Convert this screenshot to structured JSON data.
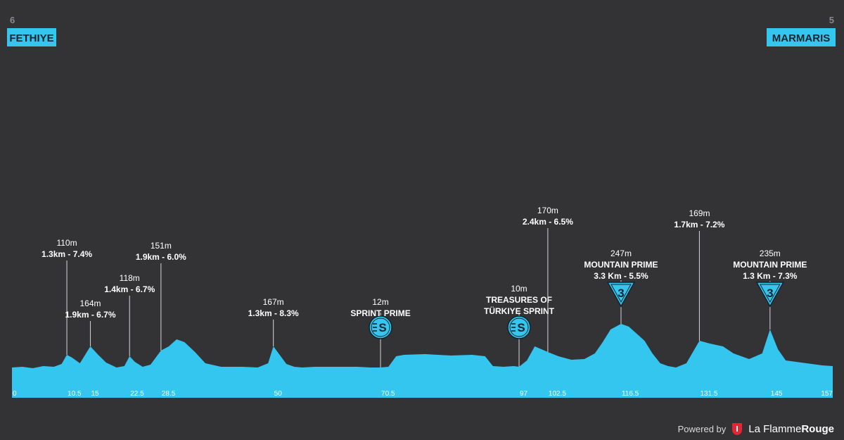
{
  "start": {
    "number": "6",
    "name": "FETHIYE"
  },
  "finish": {
    "number": "5",
    "name": "MARMARIS"
  },
  "colors": {
    "background": "#333336",
    "profile": "#35c6f0",
    "badge": "#35c6f0"
  },
  "footer": {
    "powered_by": "Powered by",
    "brand_part1": "La Flamme",
    "brand_part2": "Rouge",
    "logo_icon": "flame-logo-icon"
  },
  "chart_data": {
    "type": "area",
    "title": "",
    "xlabel": "",
    "ylabel": "",
    "xlim": [
      0,
      157
    ],
    "x_ticks": [
      {
        "x": 0,
        "label": "0"
      },
      {
        "x": 10.5,
        "label": "10.5"
      },
      {
        "x": 15,
        "label": "15"
      },
      {
        "x": 22.5,
        "label": "22.5"
      },
      {
        "x": 28.5,
        "label": "28.5"
      },
      {
        "x": 50,
        "label": "50"
      },
      {
        "x": 70.5,
        "label": "70.5"
      },
      {
        "x": 97,
        "label": "97"
      },
      {
        "x": 102.5,
        "label": "102.5"
      },
      {
        "x": 116.5,
        "label": "116.5"
      },
      {
        "x": 131.5,
        "label": "131.5"
      },
      {
        "x": 145,
        "label": "145"
      },
      {
        "x": 157,
        "label": "157"
      }
    ],
    "profile": {
      "x": [
        0,
        2,
        4,
        6,
        8,
        9.5,
        10.5,
        11.5,
        13,
        15,
        16.5,
        18,
        20,
        21.5,
        22.5,
        23.5,
        25,
        26.5,
        28.5,
        30,
        31.5,
        33,
        35,
        37,
        40,
        44,
        47,
        49,
        50,
        51,
        52.5,
        54,
        55.5,
        58,
        62,
        66,
        68.5,
        70.5,
        72,
        73.5,
        75,
        79,
        84,
        88,
        90.5,
        92,
        94,
        96,
        97,
        98.5,
        100,
        102.5,
        104.5,
        107,
        109.5,
        111.5,
        113,
        114.5,
        116.5,
        118,
        119.5,
        121,
        122.5,
        124,
        125.5,
        127,
        129,
        131.5,
        133.5,
        136,
        138,
        141,
        143.5,
        145,
        146.5,
        148,
        150,
        153,
        155,
        157
      ],
      "y": [
        8,
        9,
        7,
        10,
        9,
        13,
        26,
        22,
        14,
        38,
        26,
        15,
        8,
        10,
        24,
        16,
        9,
        12,
        32,
        38,
        48,
        44,
        30,
        14,
        9,
        9,
        8,
        14,
        38,
        28,
        13,
        9,
        8,
        9,
        9,
        9,
        8,
        8,
        9,
        24,
        26,
        27,
        25,
        26,
        24,
        10,
        9,
        10,
        9,
        18,
        38,
        30,
        24,
        19,
        20,
        28,
        44,
        62,
        70,
        66,
        56,
        46,
        28,
        14,
        10,
        8,
        14,
        46,
        42,
        38,
        28,
        20,
        28,
        62,
        34,
        18,
        16,
        13,
        11,
        10
      ]
    },
    "annotations": [
      {
        "km": 10.5,
        "elevation": "110m",
        "detail": "1.3km - 7.4%"
      },
      {
        "km": 15,
        "elevation": "164m",
        "detail": "1.9km - 6.7%"
      },
      {
        "km": 22.5,
        "elevation": "118m",
        "detail": "1.4km - 6.7%"
      },
      {
        "km": 28.5,
        "elevation": "151m",
        "detail": "1.9km - 6.0%"
      },
      {
        "km": 50,
        "elevation": "167m",
        "detail": "1.3km - 8.3%"
      },
      {
        "km": 70.5,
        "elevation": "12m",
        "detail": "SPRINT PRIME",
        "marker": "sprint",
        "icon": "sprint-icon",
        "marker_label": "S"
      },
      {
        "km": 97,
        "elevation": "10m",
        "detail": "TREASURES OF",
        "detail2": "TÜRKIYE SPRINT",
        "marker": "sprint",
        "icon": "sprint-icon",
        "marker_label": "S"
      },
      {
        "km": 102.5,
        "elevation": "170m",
        "detail": "2.4km - 6.5%"
      },
      {
        "km": 116.5,
        "elevation": "247m",
        "detail": "MOUNTAIN PRIME",
        "detail2": "3.3 Km - 5.5%",
        "marker": "kom",
        "icon": "mountain-category-icon",
        "marker_label": "3"
      },
      {
        "km": 131.5,
        "elevation": "169m",
        "detail": "1.7km - 7.2%"
      },
      {
        "km": 145,
        "elevation": "235m",
        "detail": "MOUNTAIN PRIME",
        "detail2": "1.3 Km - 7.3%",
        "marker": "kom",
        "icon": "mountain-category-icon",
        "marker_label": "3"
      }
    ]
  }
}
